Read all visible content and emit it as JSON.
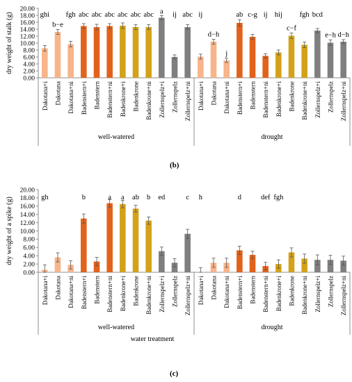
{
  "panel_labels": [
    "(b)",
    "(c)"
  ],
  "colors": {
    "Dakotana": "#F8B48A",
    "Badenstern": "#E2621B",
    "Badenkrone": "#D3A21A",
    "Zollernspelz": "#7F7F7F",
    "axis": "#8C8C8C",
    "error_bar": "#555555"
  },
  "chart_data": [
    {
      "type": "bar",
      "panel": "(b)",
      "title": "",
      "ylabel": "dry weight of stalk (g)",
      "xlabel": "",
      "ylim": [
        0,
        20
      ],
      "ytick_step": 2,
      "ytick_labels": [
        "0.00",
        "2.00",
        "4.00",
        "6.00",
        "8.00",
        "10.00",
        "12.00",
        "14.00",
        "16.00",
        "18.00",
        "20.00"
      ],
      "group_labels": [
        "well-watered",
        "drought"
      ],
      "categories": [
        "Dakotana+i",
        "Dakotana",
        "Dakotana+ni",
        "Badenstern+i",
        "Badenstern",
        "Badenstern+ni",
        "Badenkrone+i",
        "Badenkrone",
        "Badenkrone+ni",
        "Zollernspelz+i",
        "Zollernspelz",
        "Zollernspelz+ni",
        "Dakotana+i",
        "Dakotana",
        "Dakotana+ni",
        "Badenstern+i",
        "Badenstern",
        "Badenstern+ni",
        "Badenkrone+i",
        "Badenkrone",
        "Badenkrone+ni",
        "Zollernspelz+i",
        "Zollernspelz",
        "Zollernspelz+ni"
      ],
      "values": [
        8.5,
        13.2,
        9.7,
        14.9,
        14.6,
        14.9,
        15.0,
        14.6,
        14.6,
        17.3,
        6.0,
        14.6,
        6.1,
        10.4,
        5.0,
        15.8,
        11.8,
        6.3,
        7.3,
        12.1,
        9.5,
        13.6,
        10.1,
        10.4
      ],
      "errors": [
        0.8,
        0.7,
        0.8,
        0.7,
        0.8,
        0.7,
        0.8,
        0.7,
        0.7,
        0.6,
        0.6,
        0.7,
        0.7,
        0.7,
        0.6,
        0.9,
        0.7,
        0.6,
        0.7,
        0.8,
        0.8,
        0.6,
        0.8,
        0.6
      ],
      "letters": [
        "ghi",
        "b−e",
        "fgh",
        "abc",
        "abc",
        "abc",
        "abc",
        "abc",
        "abc",
        "a",
        "ij",
        "abc",
        "ij",
        "d−h",
        "j",
        "ab",
        "c-g",
        "ij",
        "hij",
        "c−f",
        "fgh",
        "bcd",
        "e−h",
        "d−h"
      ]
    },
    {
      "type": "bar",
      "panel": "(c)",
      "title": "",
      "ylabel": "dry weight of a spike (g)",
      "xlabel": "water treatment",
      "ylim": [
        0,
        20
      ],
      "ytick_step": 2,
      "ytick_labels": [
        "0.00",
        "2.00",
        "4.00",
        "6.00",
        "8.00",
        "10.00",
        "12.00",
        "14.00",
        "16.00",
        "18.00",
        "20.00"
      ],
      "group_labels": [
        "well-watered",
        "drought"
      ],
      "categories": [
        "Dakotana+i",
        "Dakotana",
        "Dakotana+ni",
        "Badenstern+i",
        "Badenstern",
        "Badenstern+ni",
        "Badenkrone+i",
        "Badenkrone",
        "Badenkrone+ni",
        "Zollernspelz+i",
        "Zollernspelz",
        "Zollernspelz+ni",
        "Dakotana+i",
        "Dakotana",
        "Dakotana+ni",
        "Badenstern+i",
        "Badenstern",
        "Badenstern+ni",
        "Badenkrone+i",
        "Badenkrone",
        "Badenkrone+ni",
        "Zollernspelz+i",
        "Zollernspelz",
        "Zollernspelz+ni"
      ],
      "values": [
        0.6,
        3.6,
        1.8,
        13.0,
        2.6,
        16.7,
        16.5,
        15.4,
        12.5,
        5.1,
        2.3,
        9.3,
        0.1,
        2.3,
        2.3,
        5.3,
        4.2,
        1.5,
        2.0,
        4.8,
        3.3,
        3.0,
        3.0,
        2.8
      ],
      "errors": [
        1.2,
        1.1,
        1.0,
        1.1,
        1.0,
        0.9,
        0.9,
        0.8,
        0.9,
        1.0,
        1.0,
        1.1,
        1.0,
        1.1,
        1.1,
        1.0,
        0.9,
        0.9,
        1.0,
        1.1,
        1.1,
        1.2,
        1.1,
        1.1
      ],
      "letters": [
        "gh",
        "",
        "",
        "b",
        "",
        "a",
        "a",
        "ab",
        "b",
        "ed",
        "",
        "c",
        "h",
        "",
        "",
        "d",
        "",
        "def",
        "fgh",
        "",
        "",
        "",
        "",
        ""
      ]
    }
  ]
}
